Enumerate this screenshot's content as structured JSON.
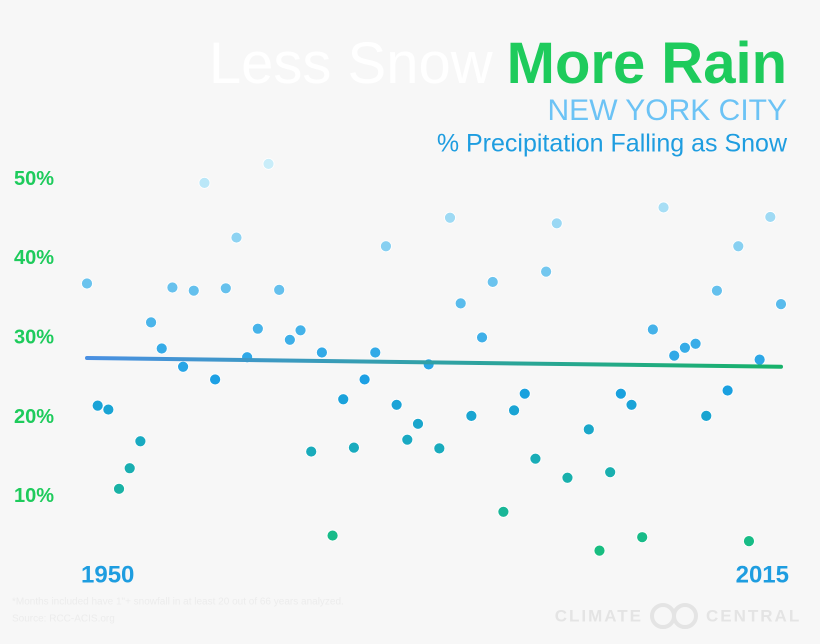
{
  "chart_data": {
    "type": "scatter",
    "title": "Less Snow",
    "title_emphasis": "More Rain",
    "subtitle": "NEW YORK CITY",
    "y_label": "% Precipitation Falling as Snow",
    "x": [
      1950,
      1951,
      1952,
      1953,
      1954,
      1955,
      1956,
      1957,
      1958,
      1959,
      1960,
      1961,
      1962,
      1963,
      1964,
      1965,
      1966,
      1967,
      1968,
      1969,
      1970,
      1971,
      1972,
      1973,
      1974,
      1975,
      1976,
      1977,
      1978,
      1979,
      1980,
      1981,
      1982,
      1983,
      1984,
      1985,
      1986,
      1987,
      1988,
      1989,
      1990,
      1991,
      1992,
      1993,
      1994,
      1995,
      1996,
      1997,
      1998,
      1999,
      2000,
      2001,
      2002,
      2003,
      2004,
      2005,
      2006,
      2007,
      2008,
      2009,
      2010,
      2011,
      2012,
      2013,
      2014,
      2015
    ],
    "values": [
      36.9,
      21.5,
      21.0,
      11.0,
      13.6,
      17.0,
      32.0,
      28.7,
      36.4,
      26.4,
      36.0,
      49.6,
      24.8,
      36.3,
      42.7,
      27.6,
      31.2,
      52.0,
      36.1,
      29.8,
      31.0,
      15.7,
      28.2,
      5.1,
      22.3,
      16.2,
      24.8,
      28.2,
      41.6,
      21.6,
      17.2,
      19.2,
      26.7,
      16.1,
      45.2,
      34.4,
      20.2,
      30.1,
      37.1,
      8.1,
      20.9,
      23.0,
      14.8,
      38.4,
      44.5,
      12.4,
      null,
      18.5,
      3.2,
      13.1,
      23.0,
      21.6,
      4.9,
      31.1,
      46.5,
      27.8,
      28.8,
      29.3,
      20.2,
      36.0,
      23.4,
      41.6,
      4.4,
      27.3,
      45.3,
      34.3
    ],
    "point_colors": [
      "#18c271",
      "#1a9fe4",
      "#d6f3fb"
    ],
    "trend": {
      "x": [
        1950,
        2015
      ],
      "values": [
        27.5,
        26.4
      ],
      "colors": [
        "#4a90e2",
        "#17b26a"
      ]
    },
    "xlim": [
      1950,
      2015
    ],
    "xticks": [
      1950,
      2015
    ],
    "ylim": [
      0,
      54
    ],
    "yticks": [
      {
        "value": 10,
        "label": "10%"
      },
      {
        "value": 20,
        "label": "20%"
      },
      {
        "value": 30,
        "label": "30%"
      },
      {
        "value": 40,
        "label": "40%"
      },
      {
        "value": 50,
        "label": "50%"
      }
    ],
    "footnote": "*Months included have 1\"+ snowfall in at least 20 out of 66 years analyzed.",
    "source": "Source: RCC-ACIS.org",
    "logo_left": "CLIMATE",
    "logo_right": "CENTRAL"
  }
}
